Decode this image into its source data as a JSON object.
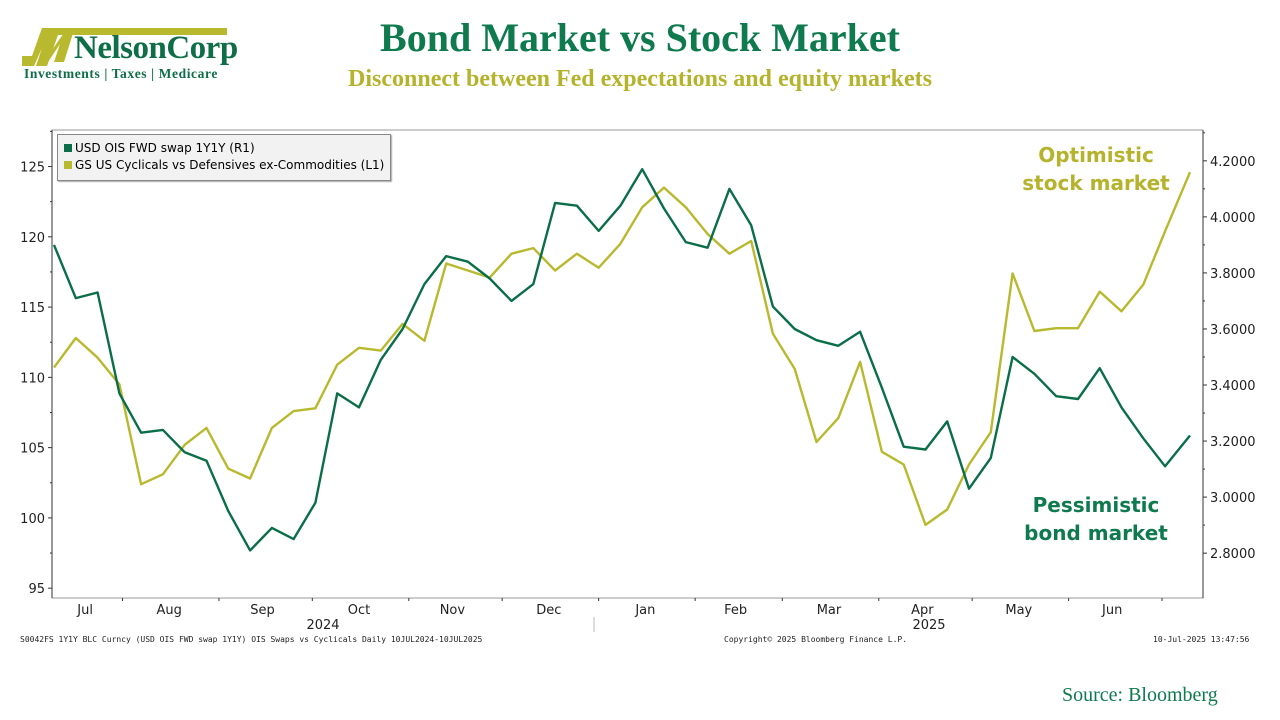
{
  "logo": {
    "name": "NelsonCorp",
    "tagline": "Investments | Taxes | Medicare"
  },
  "header": {
    "title": "Bond Market vs Stock Market",
    "subtitle": "Disconnect between Fed expectations and equity markets"
  },
  "annotations": {
    "stock_line1": "Optimistic",
    "stock_line2": "stock market",
    "bond_line1": "Pessimistic",
    "bond_line2": "bond market"
  },
  "footer": {
    "left": "S0042FS 1Y1Y BLC Curncy (USD OIS FWD swap 1Y1Y) OIS Swaps vs Cyclicals  Daily 10JUL2024-10JUL2025",
    "center": "Copyright© 2025 Bloomberg Finance L.P.",
    "right": "10-Jul-2025 13:47:56",
    "source": "Source: Bloomberg"
  },
  "colors": {
    "green": "#0a6e48",
    "yellow": "#b8b92e",
    "title_green": "#0e7a4e",
    "subtitle_yellow": "#b5b32c"
  },
  "chart_data": {
    "type": "line",
    "title": "Bond Market vs Stock Market",
    "legend_position": "top-left",
    "grid": false,
    "x_axis": {
      "month_labels": [
        "Jul",
        "Aug",
        "Sep",
        "Oct",
        "Nov",
        "Dec",
        "Jan",
        "Feb",
        "Mar",
        "Apr",
        "May",
        "Jun"
      ],
      "month_dates": [
        "2024-07-20",
        "2024-08-16",
        "2024-09-15",
        "2024-10-16",
        "2024-11-15",
        "2024-12-16",
        "2025-01-16",
        "2025-02-14",
        "2025-03-16",
        "2025-04-15",
        "2025-05-16",
        "2025-06-15"
      ],
      "year_labels": [
        "2024",
        "2025"
      ],
      "range": [
        "2024-07-10",
        "2025-07-10"
      ]
    },
    "left_axis": {
      "ticks": [
        "95",
        "100",
        "105",
        "110",
        "115",
        "120",
        "125"
      ],
      "range": [
        94.3,
        127.6
      ]
    },
    "right_axis": {
      "ticks": [
        "2.8000",
        "3.0000",
        "3.2000",
        "3.4000",
        "3.6000",
        "3.8000",
        "4.0000",
        "4.2000"
      ],
      "range": [
        2.64,
        4.31
      ]
    },
    "x": [
      "2024-07-10",
      "2024-07-17",
      "2024-07-24",
      "2024-07-31",
      "2024-08-07",
      "2024-08-14",
      "2024-08-21",
      "2024-08-28",
      "2024-09-04",
      "2024-09-11",
      "2024-09-18",
      "2024-09-25",
      "2024-10-02",
      "2024-10-09",
      "2024-10-16",
      "2024-10-23",
      "2024-10-30",
      "2024-11-06",
      "2024-11-13",
      "2024-11-20",
      "2024-11-27",
      "2024-12-04",
      "2024-12-11",
      "2024-12-18",
      "2024-12-25",
      "2025-01-01",
      "2025-01-08",
      "2025-01-15",
      "2025-01-22",
      "2025-01-29",
      "2025-02-05",
      "2025-02-12",
      "2025-02-19",
      "2025-02-26",
      "2025-03-05",
      "2025-03-12",
      "2025-03-19",
      "2025-03-26",
      "2025-04-02",
      "2025-04-09",
      "2025-04-16",
      "2025-04-23",
      "2025-04-30",
      "2025-05-07",
      "2025-05-14",
      "2025-05-21",
      "2025-05-28",
      "2025-06-04",
      "2025-06-11",
      "2025-06-18",
      "2025-06-25",
      "2025-07-02",
      "2025-07-10"
    ],
    "series": [
      {
        "name": "USD OIS FWD swap 1Y1Y (R1)",
        "axis": "right",
        "color": "#0a6e48",
        "values": [
          3.9,
          3.71,
          3.73,
          3.37,
          3.23,
          3.24,
          3.16,
          3.13,
          2.95,
          2.81,
          2.89,
          2.85,
          2.98,
          3.37,
          3.32,
          3.49,
          3.6,
          3.76,
          3.86,
          3.84,
          3.78,
          3.7,
          3.76,
          4.05,
          4.04,
          3.95,
          4.04,
          4.17,
          4.03,
          3.91,
          3.89,
          4.1,
          3.97,
          3.68,
          3.6,
          3.56,
          3.54,
          3.59,
          3.39,
          3.18,
          3.17,
          3.27,
          3.03,
          3.14,
          3.5,
          3.44,
          3.36,
          3.35,
          3.46,
          3.32,
          3.21,
          3.11,
          3.22
        ]
      },
      {
        "name": "GS US Cyclicals vs Defensives ex-Commodities (L1)",
        "axis": "left",
        "color": "#b8b92e",
        "values": [
          110.7,
          112.8,
          111.4,
          109.5,
          102.4,
          103.1,
          105.2,
          106.4,
          103.5,
          102.8,
          106.4,
          107.6,
          107.8,
          110.9,
          112.1,
          111.9,
          113.8,
          112.6,
          118.1,
          117.6,
          117.1,
          118.8,
          119.2,
          117.6,
          118.8,
          117.8,
          119.5,
          122.1,
          123.5,
          122.1,
          120.2,
          118.8,
          119.7,
          113.1,
          110.6,
          105.4,
          107.1,
          111.1,
          104.7,
          103.8,
          99.5,
          100.6,
          103.8,
          106.1,
          117.4,
          113.3,
          113.5,
          113.5,
          116.1,
          114.7,
          116.6,
          120.4,
          124.6
        ]
      }
    ]
  }
}
